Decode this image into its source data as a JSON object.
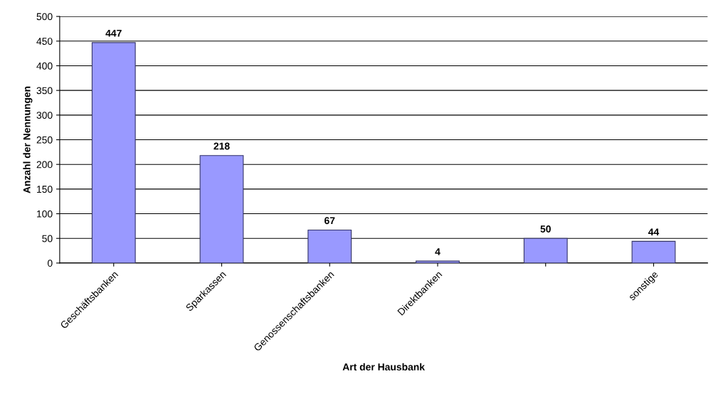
{
  "chart_data": {
    "type": "bar",
    "xlabel": "Art der Hausbank",
    "ylabel": "Anzahl der Nennungen",
    "categories": [
      "Geschäftsbanken",
      "Sparkassen",
      "Genossenschaftsbanken",
      "Direktbanken",
      null,
      "sonstige"
    ],
    "values": [
      447,
      218,
      67,
      4,
      50,
      44
    ],
    "color": "#9999ff",
    "ylim": [
      0,
      500
    ],
    "yticks": [
      0,
      50,
      100,
      150,
      200,
      250,
      300,
      350,
      400,
      450,
      500
    ],
    "grid": "y",
    "data_labels": true
  }
}
